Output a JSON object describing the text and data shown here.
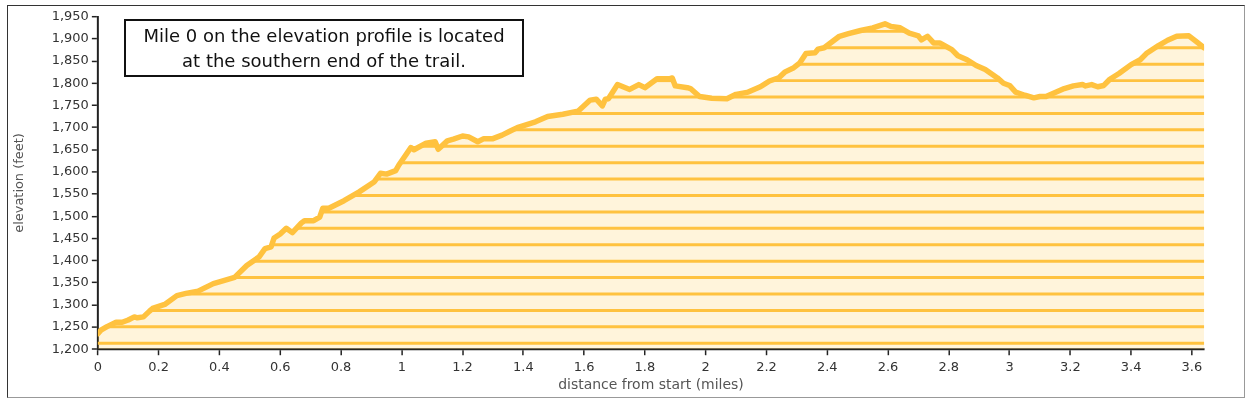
{
  "chart_data": {
    "type": "area",
    "xlabel": "distance from start (miles)",
    "ylabel": "elevation (feet)",
    "annotations": [
      "Mile 0 on the elevation profile is located at the southern end of the trail."
    ],
    "color": "#ffc23f",
    "x": [
      0,
      0.01,
      0.03,
      0.06,
      0.08,
      0.1,
      0.12,
      0.13,
      0.15,
      0.17,
      0.18,
      0.22,
      0.26,
      0.29,
      0.33,
      0.35,
      0.38,
      0.4,
      0.45,
      0.49,
      0.53,
      0.55,
      0.57,
      0.58,
      0.6,
      0.62,
      0.64,
      0.67,
      0.68,
      0.71,
      0.73,
      0.74,
      0.76,
      0.81,
      0.86,
      0.91,
      0.93,
      0.95,
      0.98,
      0.99,
      1.03,
      1.04,
      1.08,
      1.11,
      1.12,
      1.15,
      1.17,
      1.2,
      1.22,
      1.25,
      1.27,
      1.3,
      1.33,
      1.38,
      1.44,
      1.48,
      1.53,
      1.58,
      1.62,
      1.64,
      1.66,
      1.67,
      1.68,
      1.71,
      1.75,
      1.78,
      1.8,
      1.84,
      1.88,
      1.89,
      1.9,
      1.94,
      1.95,
      1.98,
      2.02,
      2.07,
      2.1,
      2.14,
      2.18,
      2.21,
      2.24,
      2.26,
      2.29,
      2.31,
      2.33,
      2.36,
      2.37,
      2.39,
      2.44,
      2.47,
      2.51,
      2.55,
      2.59,
      2.61,
      2.64,
      2.67,
      2.7,
      2.71,
      2.73,
      2.75,
      2.77,
      2.81,
      2.83,
      2.86,
      2.89,
      2.92,
      2.96,
      2.98,
      3.0,
      3.02,
      3.05,
      3.08,
      3.1,
      3.12,
      3.15,
      3.18,
      3.21,
      3.24,
      3.25,
      3.27,
      3.29,
      3.31,
      3.33,
      3.36,
      3.4,
      3.43,
      3.45,
      3.49,
      3.52,
      3.55,
      3.59,
      3.62,
      3.64
    ],
    "values": [
      1235,
      1243,
      1251,
      1261,
      1261,
      1266,
      1273,
      1271,
      1273,
      1286,
      1292,
      1301,
      1321,
      1326,
      1331,
      1338,
      1348,
      1352,
      1362,
      1389,
      1408,
      1427,
      1431,
      1451,
      1460,
      1473,
      1463,
      1485,
      1490,
      1490,
      1498,
      1518,
      1518,
      1535,
      1555,
      1578,
      1597,
      1595,
      1603,
      1615,
      1655,
      1650,
      1665,
      1668,
      1651,
      1670,
      1674,
      1681,
      1679,
      1668,
      1675,
      1675,
      1683,
      1700,
      1713,
      1725,
      1730,
      1737,
      1762,
      1764,
      1749,
      1764,
      1765,
      1797,
      1786,
      1797,
      1790,
      1810,
      1810,
      1812,
      1794,
      1790,
      1788,
      1770,
      1766,
      1765,
      1775,
      1780,
      1792,
      1805,
      1812,
      1825,
      1835,
      1846,
      1867,
      1869,
      1877,
      1880,
      1906,
      1912,
      1919,
      1925,
      1934,
      1928,
      1925,
      1913,
      1907,
      1898,
      1906,
      1891,
      1891,
      1876,
      1862,
      1853,
      1840,
      1831,
      1812,
      1800,
      1795,
      1780,
      1773,
      1767,
      1770,
      1770,
      1779,
      1788,
      1794,
      1797,
      1794,
      1797,
      1792,
      1795,
      1809,
      1822,
      1842,
      1853,
      1867,
      1885,
      1897,
      1906,
      1907,
      1891,
      1880
    ],
    "xlim": [
      0,
      3.64
    ],
    "xticks": [
      0,
      0.2,
      0.4,
      0.6,
      0.8,
      1,
      1.2,
      1.4,
      1.6,
      1.8,
      2,
      2.2,
      2.4,
      2.6,
      2.8,
      3,
      3.2,
      3.4,
      3.6
    ],
    "ylim": [
      1200,
      1950
    ],
    "yticks": [
      {
        "value": 1200,
        "label": "1,200"
      },
      {
        "value": 1250,
        "label": "1,250"
      },
      {
        "value": 1300,
        "label": "1,300"
      },
      {
        "value": 1350,
        "label": "1,350"
      },
      {
        "value": 1400,
        "label": "1,400"
      },
      {
        "value": 1450,
        "label": "1,450"
      },
      {
        "value": 1500,
        "label": "1,500"
      },
      {
        "value": 1550,
        "label": "1,550"
      },
      {
        "value": 1600,
        "label": "1,600"
      },
      {
        "value": 1650,
        "label": "1,650"
      },
      {
        "value": 1700,
        "label": "1,700"
      },
      {
        "value": 1750,
        "label": "1,750"
      },
      {
        "value": 1800,
        "label": "1,800"
      },
      {
        "value": 1850,
        "label": "1,850"
      },
      {
        "value": 1900,
        "label": "1,900"
      },
      {
        "value": 1950,
        "label": "1,950"
      }
    ]
  }
}
